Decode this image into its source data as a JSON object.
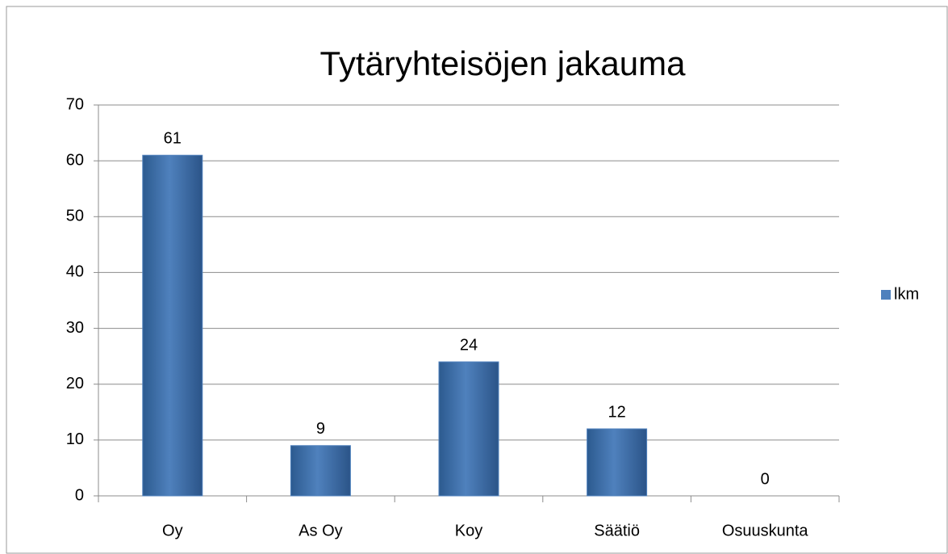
{
  "chart_data": {
    "type": "bar",
    "title": "Tytäryhteisöjen jakauma",
    "categories": [
      "Oy",
      "As Oy",
      "Koy",
      "Säätiö",
      "Osuuskunta"
    ],
    "series": [
      {
        "name": "lkm",
        "color": "#4f81bd",
        "values": [
          61,
          9,
          24,
          12,
          0
        ]
      }
    ],
    "ylim": [
      0,
      70
    ],
    "yticks": [
      0,
      10,
      20,
      30,
      40,
      50,
      60,
      70
    ],
    "grid": true,
    "legend": "right"
  }
}
